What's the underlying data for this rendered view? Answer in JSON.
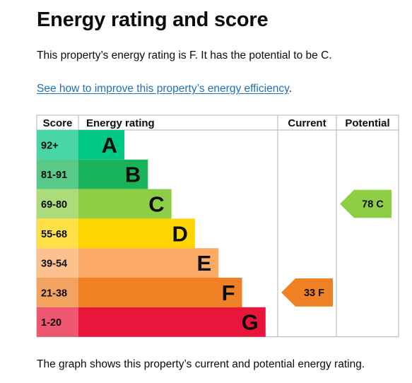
{
  "heading": "Energy rating and score",
  "summary": "This property’s energy rating is F. It has the potential to be C.",
  "improve_link": "See how to improve this property’s energy efficiency",
  "improve_link_suffix": ".",
  "caption": "The graph shows this property’s current and potential energy rating.",
  "table": {
    "headers": {
      "score": "Score",
      "rating": "Energy rating",
      "current": "Current",
      "potential": "Potential"
    }
  },
  "bands": [
    {
      "score": "92+",
      "letter": "A",
      "color": "#00c781"
    },
    {
      "score": "81-91",
      "letter": "B",
      "color": "#19b459"
    },
    {
      "score": "69-80",
      "letter": "C",
      "color": "#8dce46"
    },
    {
      "score": "55-68",
      "letter": "D",
      "color": "#ffd500"
    },
    {
      "score": "39-54",
      "letter": "E",
      "color": "#fcaa65"
    },
    {
      "score": "21-38",
      "letter": "F",
      "color": "#ef8023"
    },
    {
      "score": "1-20",
      "letter": "G",
      "color": "#e9153b"
    }
  ],
  "current": {
    "score": 33,
    "band": "F",
    "label": "33 F",
    "color": "#ef8023"
  },
  "potential": {
    "score": 78,
    "band": "C",
    "label": "78 C",
    "color": "#8dce46"
  }
}
